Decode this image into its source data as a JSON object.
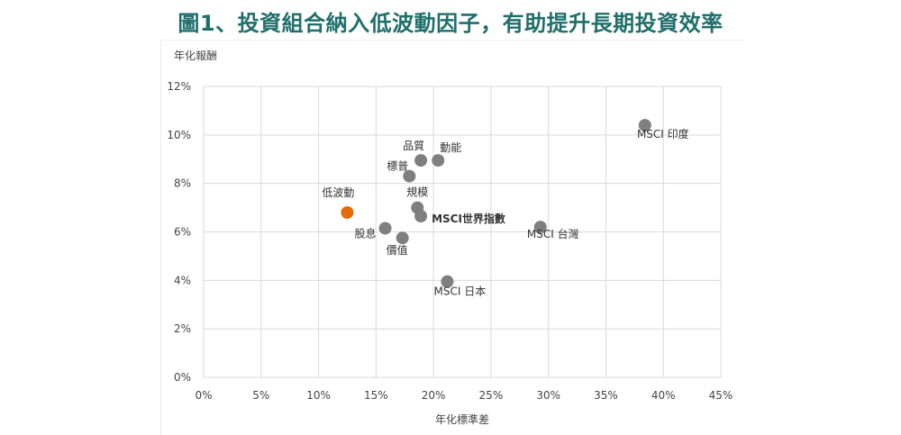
{
  "title": "圖1、投資組合納入低波動因子，有助提升長期投資效率",
  "chart_data": {
    "type": "scatter",
    "ylabel": "年化報酬",
    "xlabel": "年化標準差",
    "xlim": [
      0,
      45
    ],
    "ylim": [
      0,
      12
    ],
    "x_ticks": [
      "0%",
      "5%",
      "10%",
      "15%",
      "20%",
      "25%",
      "30%",
      "35%",
      "40%",
      "45%"
    ],
    "y_ticks": [
      "0%",
      "2%",
      "4%",
      "6%",
      "8%",
      "10%",
      "12%"
    ],
    "grid": true,
    "colors": {
      "default": "#7f7f7f",
      "highlight": "#e36c0a",
      "grid": "#d9d9d9",
      "title": "#1f6f6b"
    },
    "points": [
      {
        "label": "低波動",
        "x": 12.5,
        "y": 6.8,
        "highlight": true
      },
      {
        "label": "股息",
        "x": 15.8,
        "y": 6.15
      },
      {
        "label": "價值",
        "x": 17.3,
        "y": 5.75
      },
      {
        "label": "標普",
        "x": 17.9,
        "y": 8.3
      },
      {
        "label": "品質",
        "x": 18.9,
        "y": 8.95
      },
      {
        "label": "動能",
        "x": 20.4,
        "y": 8.95
      },
      {
        "label": "規模",
        "x": 18.6,
        "y": 7.0
      },
      {
        "label": "MSCI世界指數",
        "x": 18.9,
        "y": 6.65,
        "bold": true
      },
      {
        "label": "MSCI 台灣",
        "x": 29.3,
        "y": 6.2
      },
      {
        "label": "MSCI 日本",
        "x": 21.2,
        "y": 3.95
      },
      {
        "label": "MSCI 印度",
        "x": 38.4,
        "y": 10.4
      }
    ]
  }
}
